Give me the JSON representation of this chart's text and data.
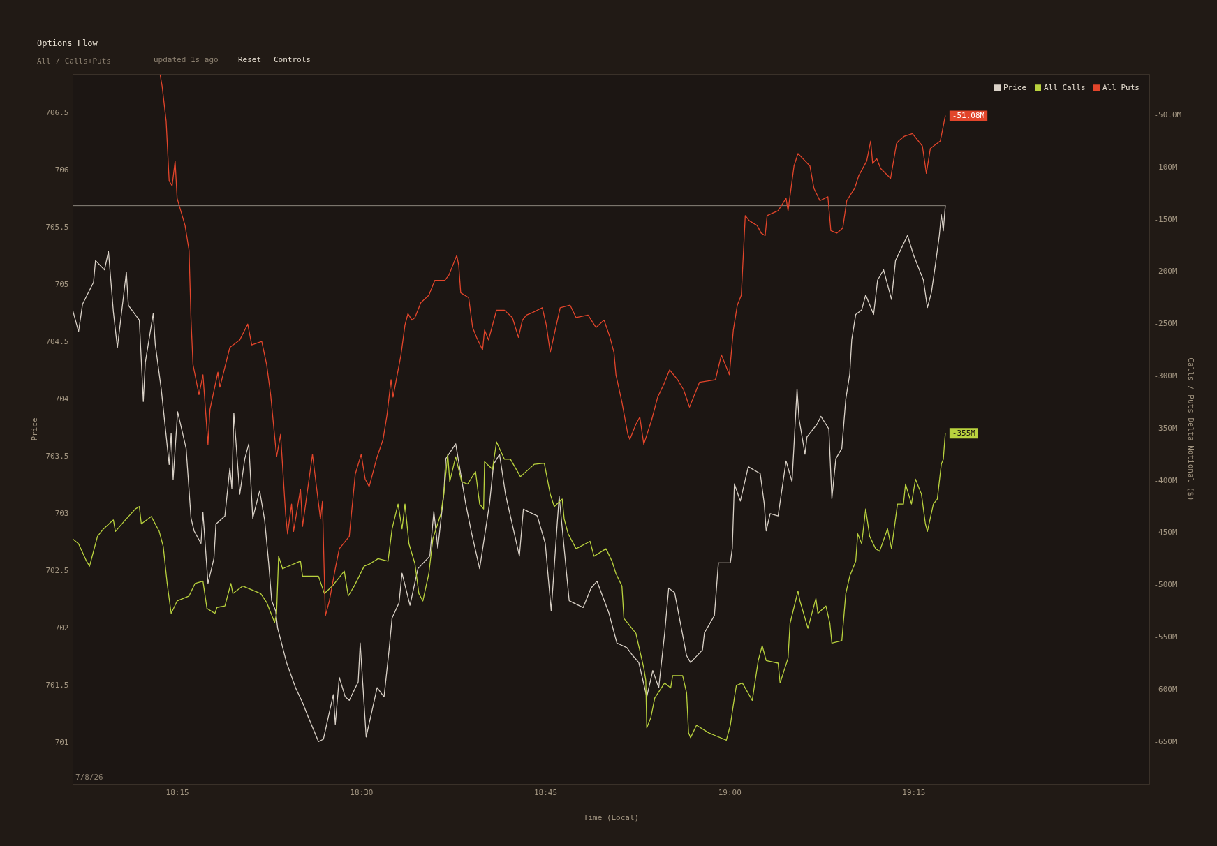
{
  "chart_data": {
    "type": "line",
    "title": "Options Flow",
    "subtitle": "All / Calls+Puts",
    "annotations": [
      "updated 1s ago",
      "Reset",
      "Controls",
      "7/8/26"
    ],
    "xlabel": "Time (Local)",
    "ylabel": "Price",
    "y2label": "Calls / Puts Delta Notional ($)",
    "xlim": [
      18.1081,
      19.5701
    ],
    "xticks": [
      {
        "value": 18.25,
        "label": "18:15"
      },
      {
        "value": 18.5,
        "label": "18:30"
      },
      {
        "value": 18.75,
        "label": "18:45"
      },
      {
        "value": 19,
        "label": "19:00"
      },
      {
        "value": 19.25,
        "label": "19:15"
      }
    ],
    "ylim": [
      700.64,
      706.84
    ],
    "yticks": [
      701,
      701.5,
      702,
      702.5,
      703,
      703.5,
      704,
      704.5,
      705,
      705.5,
      706,
      706.5
    ],
    "y2lim": [
      -690.6,
      -11
    ],
    "y2ticks": [
      {
        "value": -50,
        "label": "-50.0M"
      },
      {
        "value": -100,
        "label": "-100M"
      },
      {
        "value": -150,
        "label": "-150M"
      },
      {
        "value": -200,
        "label": "-200M"
      },
      {
        "value": -250,
        "label": "-250M"
      },
      {
        "value": -300,
        "label": "-300M"
      },
      {
        "value": -350,
        "label": "-350M"
      },
      {
        "value": -400,
        "label": "-400M"
      },
      {
        "value": -450,
        "label": "-450M"
      },
      {
        "value": -500,
        "label": "-500M"
      },
      {
        "value": -550,
        "label": "-550M"
      },
      {
        "value": -600,
        "label": "-600M"
      },
      {
        "value": -650,
        "label": "-650M"
      }
    ],
    "legend": "top right",
    "ref_lines": [
      {
        "axis": "y",
        "value": 705.69,
        "color": "#8a847b"
      }
    ],
    "series": [
      {
        "name": "Price",
        "color": "#d9d1c7",
        "x": [
          18.1081,
          18.1162,
          18.1216,
          18.1365,
          18.1392,
          18.1514,
          18.1568,
          18.1635,
          18.1689,
          18.1811,
          18.1838,
          18.1987,
          18.2041,
          18.2068,
          18.2176,
          18.2203,
          18.2284,
          18.2392,
          18.2419,
          18.2446,
          18.2507,
          18.2622,
          18.2689,
          18.273,
          18.2824,
          18.2851,
          18.2919,
          18.3,
          18.3027,
          18.3149,
          18.3216,
          18.3243,
          18.327,
          18.3351,
          18.3419,
          18.3473,
          18.3527,
          18.3621,
          18.3689,
          18.3743,
          18.3784,
          18.3838,
          18.3865,
          18.3986,
          18.4108,
          18.4203,
          18.427,
          18.4419,
          18.4486,
          18.4621,
          18.4648,
          18.4702,
          18.4783,
          18.4838,
          18.4959,
          18.4986,
          18.5067,
          18.5216,
          18.531,
          18.5378,
          18.5419,
          18.5513,
          18.5554,
          18.5662,
          18.577,
          18.5932,
          18.5986,
          18.604,
          18.6121,
          18.6148,
          18.6283,
          18.6418,
          18.6499,
          18.6608,
          18.6743,
          18.6797,
          18.6878,
          18.6959,
          18.7148,
          18.7202,
          18.7391,
          18.7499,
          18.758,
          18.7661,
          18.7688,
          18.7824,
          18.8013,
          18.8121,
          18.8202,
          18.8364,
          18.8472,
          18.8607,
          18.8688,
          18.8769,
          18.8877,
          18.8959,
          18.904,
          18.9121,
          18.9175,
          18.9256,
          18.9418,
          18.9472,
          18.9634,
          18.9661,
          18.9796,
          18.985,
          19.0012,
          19.0039,
          19.0067,
          19.0148,
          19.0256,
          19.0418,
          19.0472,
          19.0499,
          19.0553,
          19.0661,
          19.0769,
          19.085,
          19.0918,
          19.0945,
          19.1026,
          19.1053,
          19.1188,
          19.1242,
          19.135,
          19.1391,
          19.1445,
          19.1526,
          19.158,
          19.1634,
          19.1661,
          19.1715,
          19.1796,
          19.185,
          19.1958,
          19.2012,
          19.2093,
          19.2201,
          19.2255,
          19.2418,
          19.2499,
          19.2634,
          19.2688,
          19.2742,
          19.2796,
          19.285,
          19.2877,
          19.2904,
          19.2931
        ],
        "values": [
          704.78,
          704.59,
          704.83,
          705.02,
          705.21,
          705.13,
          705.29,
          704.76,
          704.45,
          705.11,
          704.82,
          704.69,
          703.98,
          704.32,
          704.75,
          704.48,
          704.09,
          703.43,
          703.7,
          703.3,
          703.89,
          703.57,
          702.96,
          702.85,
          702.74,
          703.01,
          702.39,
          702.61,
          702.91,
          702.98,
          703.4,
          703.22,
          703.88,
          703.17,
          703.48,
          703.61,
          702.96,
          703.2,
          702.94,
          702.57,
          702.24,
          702.15,
          702.0,
          701.7,
          701.48,
          701.35,
          701.24,
          701.01,
          701.03,
          701.42,
          701.16,
          701.57,
          701.4,
          701.37,
          701.53,
          701.87,
          701.05,
          701.48,
          701.4,
          701.81,
          702.09,
          702.22,
          702.48,
          702.2,
          702.52,
          702.63,
          703.02,
          702.7,
          703.17,
          703.48,
          703.61,
          703.09,
          702.83,
          702.52,
          703.09,
          703.43,
          703.52,
          703.17,
          702.63,
          703.04,
          702.98,
          702.74,
          702.15,
          702.91,
          703.15,
          702.24,
          702.18,
          702.35,
          702.41,
          702.13,
          701.87,
          701.83,
          701.76,
          701.7,
          701.4,
          701.63,
          701.48,
          701.96,
          702.35,
          702.31,
          701.76,
          701.7,
          701.81,
          701.96,
          702.11,
          702.57,
          702.57,
          702.7,
          703.26,
          703.11,
          703.41,
          703.35,
          703.09,
          702.85,
          703.0,
          702.98,
          703.46,
          703.28,
          704.09,
          703.83,
          703.52,
          703.67,
          703.78,
          703.85,
          703.74,
          703.13,
          703.48,
          703.57,
          704.0,
          704.22,
          704.52,
          704.74,
          704.78,
          704.91,
          704.74,
          705.04,
          705.13,
          704.87,
          705.21,
          705.43,
          705.26,
          705.04,
          704.8,
          704.93,
          705.17,
          705.43,
          705.61,
          705.47,
          705.69
        ]
      },
      {
        "name": "All Calls",
        "color": "#b9d23e",
        "axis": "y2",
        "x": [
          18.1081,
          18.1162,
          18.127,
          18.1311,
          18.1365,
          18.1419,
          18.15,
          18.1635,
          18.1662,
          18.1797,
          18.1933,
          18.1987,
          18.2014,
          18.2149,
          18.2257,
          18.2311,
          18.2365,
          18.2419,
          18.25,
          18.2662,
          18.2743,
          18.2851,
          18.2905,
          18.3013,
          18.3041,
          18.3149,
          18.323,
          18.3257,
          18.3392,
          18.3635,
          18.3716,
          18.3824,
          18.3851,
          18.3878,
          18.3932,
          18.4175,
          18.4203,
          18.4419,
          18.45,
          18.4608,
          18.477,
          18.4824,
          18.4905,
          18.504,
          18.5121,
          18.5229,
          18.5364,
          18.5419,
          18.55,
          18.5554,
          18.5594,
          18.5648,
          18.5729,
          18.5783,
          18.5837,
          18.5918,
          18.5973,
          18.6081,
          18.6121,
          18.6175,
          18.6202,
          18.6283,
          18.6364,
          18.6445,
          18.6553,
          18.6608,
          18.6662,
          18.6675,
          18.6783,
          18.6837,
          18.6945,
          18.7026,
          18.7162,
          18.7351,
          18.7486,
          18.7567,
          18.7621,
          18.7729,
          18.7756,
          18.781,
          18.7918,
          18.8107,
          18.8161,
          18.8324,
          18.8405,
          18.8459,
          18.854,
          18.8567,
          18.8729,
          18.8783,
          18.8837,
          18.8864,
          18.8877,
          18.8932,
          18.8986,
          18.9121,
          18.9202,
          18.9229,
          18.9364,
          18.9418,
          18.9445,
          18.9472,
          18.9553,
          18.9715,
          18.9796,
          18.9958,
          19.0012,
          19.0067,
          19.0094,
          19.0175,
          19.031,
          19.0391,
          19.0445,
          19.0499,
          19.0661,
          19.0688,
          19.0796,
          19.0823,
          19.0931,
          19.0958,
          19.1066,
          19.1174,
          19.1201,
          19.131,
          19.1364,
          19.1391,
          19.1526,
          19.158,
          19.1634,
          19.1715,
          19.1742,
          19.1796,
          19.185,
          19.1904,
          19.1985,
          19.2039,
          19.2147,
          19.2201,
          19.2282,
          19.2363,
          19.2391,
          19.2472,
          19.2526,
          19.2607,
          19.2661,
          19.2688,
          19.2769,
          19.2823,
          19.2877,
          19.2904,
          19.2931
        ],
        "values": [
          -456.0,
          -460.7,
          -477.4,
          -482.2,
          -467.9,
          -453.6,
          -446.5,
          -437.9,
          -448.9,
          -437.9,
          -427.4,
          -425.1,
          -441.7,
          -434.6,
          -448.9,
          -463.1,
          -498.8,
          -527.4,
          -515.5,
          -510.7,
          -498.8,
          -496.5,
          -522.6,
          -527.4,
          -521.7,
          -520.3,
          -498.8,
          -508.4,
          -501.2,
          -508.4,
          -516.9,
          -536.0,
          -527.4,
          -472.7,
          -484.6,
          -477.4,
          -491.7,
          -491.7,
          -508.4,
          -501.2,
          -486.9,
          -510.7,
          -501.2,
          -482.2,
          -479.8,
          -475.0,
          -477.4,
          -446.5,
          -422.7,
          -446.5,
          -422.7,
          -460.7,
          -479.8,
          -508.4,
          -515.5,
          -489.3,
          -456.0,
          -432.2,
          -413.2,
          -375.1,
          -401.3,
          -377.5,
          -401.3,
          -403.6,
          -391.7,
          -422.7,
          -427.4,
          -382.2,
          -389.4,
          -363.2,
          -379.8,
          -379.8,
          -396.5,
          -384.6,
          -383.6,
          -413.2,
          -425.1,
          -417.9,
          -437.0,
          -451.2,
          -465.5,
          -458.4,
          -472.7,
          -465.5,
          -477.4,
          -489.3,
          -501.2,
          -532.2,
          -546.4,
          -563.1,
          -579.7,
          -591.6,
          -636.9,
          -627.3,
          -608.3,
          -594.0,
          -598.8,
          -586.9,
          -586.9,
          -603.5,
          -641.6,
          -646.4,
          -634.5,
          -641.6,
          -644.0,
          -648.8,
          -634.5,
          -608.3,
          -596.4,
          -594.0,
          -610.7,
          -572.6,
          -558.3,
          -572.6,
          -575.0,
          -594.0,
          -570.2,
          -536.9,
          -506.0,
          -515.5,
          -541.7,
          -513.1,
          -527.4,
          -520.3,
          -536.9,
          -555.9,
          -553.6,
          -508.4,
          -491.7,
          -477.4,
          -451.2,
          -460.7,
          -427.4,
          -453.6,
          -465.5,
          -467.9,
          -446.5,
          -465.5,
          -422.7,
          -422.7,
          -403.6,
          -422.7,
          -398.9,
          -413.2,
          -441.7,
          -448.9,
          -422.7,
          -417.9,
          -384.6,
          -379.8,
          -355
        ],
        "value_labels": [
          null,
          null,
          null,
          null,
          null,
          null,
          null,
          null,
          null,
          null,
          null,
          null,
          null,
          null,
          null,
          null,
          null,
          null,
          null,
          null,
          null,
          null,
          null,
          null,
          null,
          null,
          null,
          null,
          null,
          null,
          null,
          null,
          null,
          null,
          null,
          null,
          null,
          null,
          null,
          null,
          null,
          null,
          null,
          null,
          null,
          null,
          null,
          null,
          null,
          null,
          null,
          null,
          null,
          null,
          null,
          null,
          null,
          null,
          null,
          null,
          null,
          null,
          null,
          null,
          null,
          null,
          null,
          null,
          null,
          null,
          null,
          null,
          null,
          null,
          null,
          null,
          null,
          null,
          null,
          null,
          null,
          null,
          null,
          null,
          null,
          null,
          null,
          null,
          null,
          null,
          null,
          null,
          null,
          null,
          null,
          null,
          null,
          null,
          null,
          null,
          null,
          null,
          null,
          null,
          null,
          null,
          null,
          null,
          null,
          null,
          null,
          null,
          null,
          null,
          null,
          null,
          null,
          null,
          null,
          null,
          null,
          null,
          null,
          null,
          null,
          null,
          null,
          null,
          null,
          null,
          null,
          null,
          null,
          null,
          null,
          null,
          null,
          null,
          null,
          null,
          null,
          null,
          null,
          null,
          null,
          null,
          null,
          null,
          null,
          null,
          "-355M"
        ]
      },
      {
        "name": "All Puts",
        "color": "#e2452b",
        "axis": "y2",
        "x": [
          18.227,
          18.2297,
          18.2351,
          18.2392,
          18.2432,
          18.2473,
          18.25,
          18.2608,
          18.2662,
          18.2689,
          18.2716,
          18.2797,
          18.2851,
          18.2919,
          18.2946,
          18.3054,
          18.3081,
          18.3216,
          18.3351,
          18.3459,
          18.3513,
          18.3649,
          18.3716,
          18.377,
          18.3851,
          18.3905,
          18.3973,
          18.4,
          18.4054,
          18.4081,
          18.4175,
          18.4203,
          18.4338,
          18.4446,
          18.4473,
          18.4513,
          18.4567,
          18.4648,
          18.4702,
          18.4838,
          18.4919,
          18.5,
          18.5054,
          18.5108,
          18.5216,
          18.5297,
          18.5351,
          18.5405,
          18.5432,
          18.554,
          18.5594,
          18.5635,
          18.5689,
          18.5729,
          18.581,
          18.5918,
          18.6,
          18.6135,
          18.6189,
          18.6297,
          18.6324,
          18.6351,
          18.6459,
          18.6513,
          18.6567,
          18.6648,
          18.6675,
          18.6729,
          18.6837,
          18.6945,
          18.7053,
          18.7135,
          18.7189,
          18.7243,
          18.7324,
          18.7459,
          18.7513,
          18.7567,
          18.7702,
          18.7837,
          18.7918,
          18.808,
          18.8188,
          18.8297,
          18.8378,
          18.8432,
          18.8459,
          18.854,
          18.8621,
          18.8648,
          18.8729,
          18.8783,
          18.8837,
          18.8945,
          18.9026,
          18.9107,
          18.9188,
          18.9296,
          18.9377,
          18.9458,
          18.9594,
          18.981,
          18.9891,
          18.9999,
          19.0053,
          19.0107,
          19.0161,
          19.0215,
          19.0269,
          19.0377,
          19.0431,
          19.0485,
          19.0512,
          19.0661,
          19.0769,
          19.0796,
          19.0877,
          19.0931,
          19.1093,
          19.1147,
          19.1229,
          19.1337,
          19.1377,
          19.1458,
          19.1539,
          19.1593,
          19.1701,
          19.1755,
          19.1864,
          19.1918,
          19.1945,
          19.1999,
          19.2053,
          19.2188,
          19.2269,
          19.2296,
          19.2377,
          19.2485,
          19.262,
          19.2674,
          19.2728,
          19.2863,
          19.289,
          19.2931
        ],
        "values": [
          -12,
          -22.9,
          -56.2,
          -113.3,
          -118.1,
          -94.3,
          -130.0,
          -156.1,
          -179.9,
          -246.6,
          -289.4,
          -318.0,
          -298.9,
          -365.6,
          -332.2,
          -296.5,
          -310.8,
          -272.8,
          -265.6,
          -250.4,
          -270.4,
          -267.0,
          -289.4,
          -318.0,
          -377.5,
          -356.0,
          -432.2,
          -451.2,
          -422.7,
          -448.9,
          -408.4,
          -444.1,
          -375.1,
          -437.0,
          -420.3,
          -529.8,
          -515.5,
          -484.6,
          -465.5,
          -453.6,
          -394.1,
          -375.1,
          -398.9,
          -406.0,
          -377.5,
          -360.8,
          -337.0,
          -303.7,
          -320.3,
          -279.9,
          -251.3,
          -240.4,
          -246.6,
          -244.2,
          -229.9,
          -222.8,
          -208.5,
          -208.5,
          -203.7,
          -184.7,
          -194.2,
          -220.4,
          -225.2,
          -253.7,
          -263.2,
          -275.1,
          -256.1,
          -265.6,
          -237.1,
          -237.1,
          -244.2,
          -263.2,
          -246.6,
          -241.8,
          -239.4,
          -234.7,
          -251.3,
          -277.5,
          -234.7,
          -232.3,
          -244.2,
          -241.8,
          -253.7,
          -246.6,
          -263.2,
          -277.5,
          -298.9,
          -325.1,
          -356.0,
          -360.8,
          -346.5,
          -339.4,
          -365.6,
          -341.8,
          -320.3,
          -308.4,
          -294.2,
          -303.7,
          -313.2,
          -329.9,
          -306.1,
          -303.7,
          -279.9,
          -298.9,
          -256.1,
          -232.3,
          -222.8,
          -146.6,
          -151.4,
          -156.1,
          -163.3,
          -165.7,
          -146.6,
          -141.9,
          -130.0,
          -141.9,
          -99.0,
          -87.1,
          -99.0,
          -120.4,
          -132.3,
          -128.5,
          -160.9,
          -163.3,
          -158.5,
          -132.3,
          -120.4,
          -108.5,
          -94.3,
          -75.2,
          -96.6,
          -91.9,
          -101.4,
          -110.9,
          -77.6,
          -75.2,
          -70.5,
          -68.1,
          -80.0,
          -106.2,
          -82.4,
          -75.2,
          -65.7,
          -51.08
        ],
        "value_labels": [
          null,
          null,
          null,
          null,
          null,
          null,
          null,
          null,
          null,
          null,
          null,
          null,
          null,
          null,
          null,
          null,
          null,
          null,
          null,
          null,
          null,
          null,
          null,
          null,
          null,
          null,
          null,
          null,
          null,
          null,
          null,
          null,
          null,
          null,
          null,
          null,
          null,
          null,
          null,
          null,
          null,
          null,
          null,
          null,
          null,
          null,
          null,
          null,
          null,
          null,
          null,
          null,
          null,
          null,
          null,
          null,
          null,
          null,
          null,
          null,
          null,
          null,
          null,
          null,
          null,
          null,
          null,
          null,
          null,
          null,
          null,
          null,
          null,
          null,
          null,
          null,
          null,
          null,
          null,
          null,
          null,
          null,
          null,
          null,
          null,
          null,
          null,
          null,
          null,
          null,
          null,
          null,
          null,
          null,
          null,
          null,
          null,
          null,
          null,
          null,
          null,
          null,
          null,
          null,
          null,
          null,
          null,
          null,
          null,
          null,
          null,
          null,
          null,
          null,
          null,
          null,
          null,
          null,
          null,
          null,
          null,
          null,
          null,
          null,
          null,
          null,
          null,
          null,
          null,
          null,
          null,
          null,
          null,
          null,
          null,
          null,
          null,
          null,
          null,
          null,
          null,
          null,
          null,
          "-51.08M"
        ]
      }
    ]
  }
}
